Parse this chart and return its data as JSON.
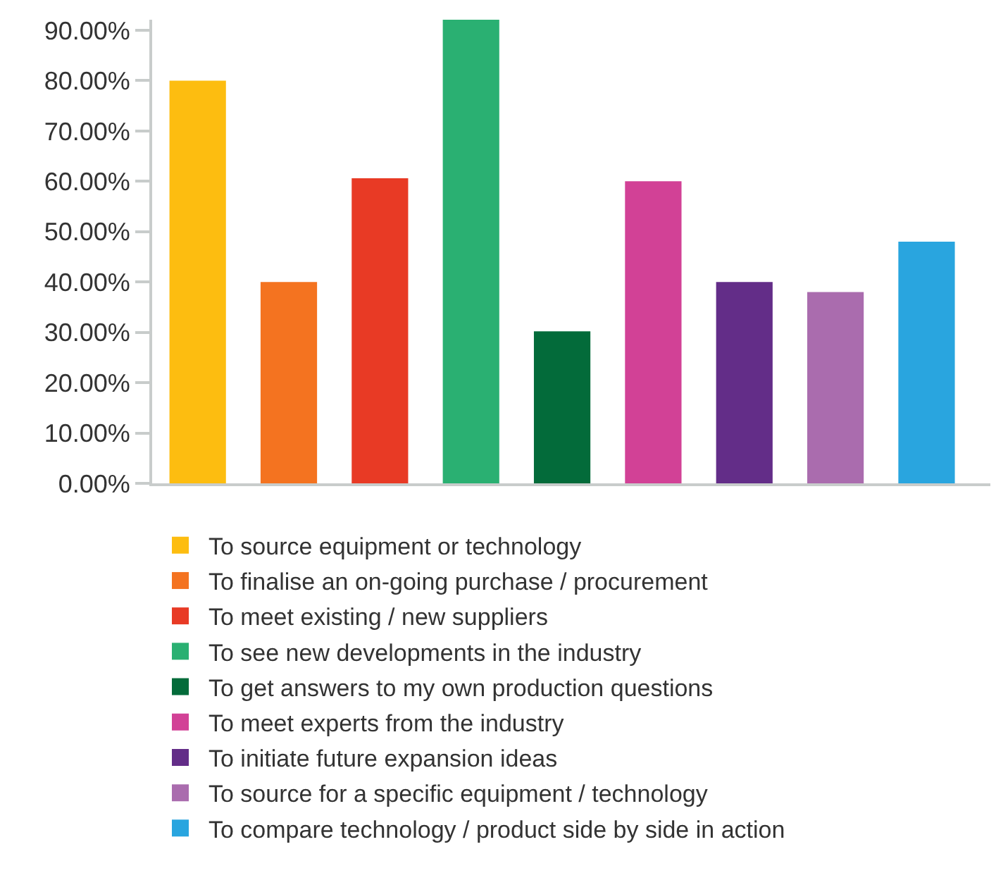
{
  "chart_data": {
    "type": "bar",
    "categories": [
      null,
      null,
      null,
      null,
      null,
      null,
      null,
      null,
      null
    ],
    "series": [
      {
        "name": "To source equipment or technology",
        "color": "#fdbd10",
        "values": [
          80,
          null,
          null,
          null,
          null,
          null,
          null,
          null,
          null
        ]
      },
      {
        "name": "To finalise an on-going purchase / procurement",
        "color": "#f47320",
        "values": [
          null,
          40,
          null,
          null,
          null,
          null,
          null,
          null,
          null
        ]
      },
      {
        "name": "To meet existing / new suppliers",
        "color": "#e83a25",
        "values": [
          null,
          null,
          60.6,
          null,
          null,
          null,
          null,
          null,
          null
        ]
      },
      {
        "name": "To see new developments in the industry",
        "color": "#2ab072",
        "values": [
          null,
          null,
          null,
          92.1,
          null,
          null,
          null,
          null,
          null
        ]
      },
      {
        "name": "To get answers to my own production questions",
        "color": "#036b3a",
        "values": [
          null,
          null,
          null,
          null,
          30.2,
          null,
          null,
          null,
          null
        ]
      },
      {
        "name": "To meet experts from the industry",
        "color": "#d24196",
        "values": [
          null,
          null,
          null,
          null,
          null,
          60,
          null,
          null,
          null
        ]
      },
      {
        "name": "To initiate future expansion ideas",
        "color": "#632d88",
        "values": [
          null,
          null,
          null,
          null,
          null,
          null,
          40,
          null,
          null
        ]
      },
      {
        "name": "To source for a specific equipment / technology",
        "color": "#aa6cae",
        "values": [
          null,
          null,
          null,
          null,
          null,
          null,
          null,
          38,
          null
        ]
      },
      {
        "name": "To compare technology / product side by side in action",
        "color": "#29a5df",
        "values": [
          null,
          null,
          null,
          null,
          null,
          null,
          null,
          null,
          48
        ]
      }
    ],
    "ylim": [
      0,
      92.1
    ],
    "yticks": [
      {
        "value": 0,
        "label": "0.00%"
      },
      {
        "value": 10,
        "label": "10.00%"
      },
      {
        "value": 20,
        "label": "20.00%"
      },
      {
        "value": 30,
        "label": "30.00%"
      },
      {
        "value": 40,
        "label": "40.00%"
      },
      {
        "value": 50,
        "label": "50.00%"
      },
      {
        "value": 60,
        "label": "60.00%"
      },
      {
        "value": 70,
        "label": "70.00%"
      },
      {
        "value": 80,
        "label": "80.00%"
      },
      {
        "value": 90,
        "label": "90.00%"
      }
    ],
    "legend": "bottom"
  }
}
